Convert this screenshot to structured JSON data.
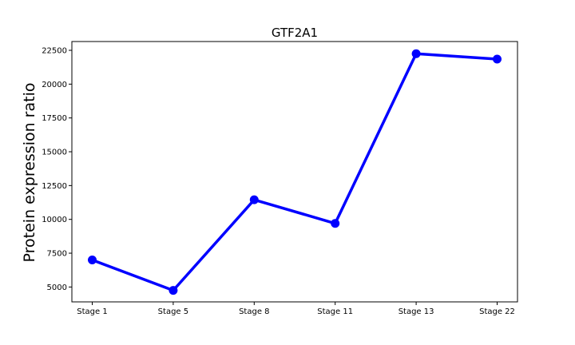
{
  "chart_data": {
    "type": "line",
    "title": "GTF2A1",
    "xlabel": "",
    "ylabel": "Protein expression ratio",
    "categories": [
      "Stage 1",
      "Stage 5",
      "Stage 8",
      "Stage 11",
      "Stage 13",
      "Stage 22"
    ],
    "series": [
      {
        "values": [
          7000,
          4750,
          11450,
          9700,
          22250,
          21850
        ]
      }
    ],
    "ylim": [
      3900,
      23150
    ],
    "yticks": [
      5000,
      7500,
      10000,
      12500,
      15000,
      17500,
      20000,
      22500
    ],
    "ytick_labels": [
      "5000",
      "7500",
      "10000",
      "12500",
      "15000",
      "17500",
      "20000",
      "22500"
    ],
    "grid": false,
    "line_color": "#0000ff",
    "marker_color": "#0000ff"
  }
}
